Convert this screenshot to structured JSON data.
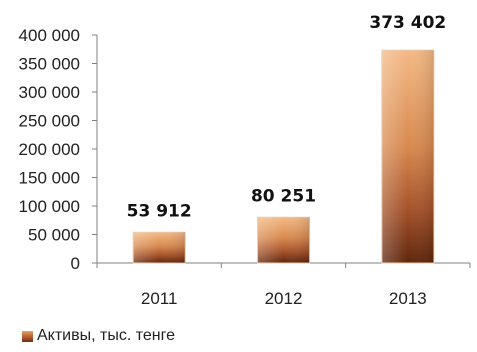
{
  "chart_data": {
    "type": "bar",
    "categories": [
      "2011",
      "2012",
      "2013"
    ],
    "series": [
      {
        "name": "Активы, тыс. тенге",
        "values": [
          53912,
          80251,
          373402
        ]
      }
    ],
    "data_labels": [
      "53 912",
      "80 251",
      "373 402"
    ],
    "y_ticks": [
      "0",
      "50 000",
      "100 000",
      "150 000",
      "200 000",
      "250 000",
      "300 000",
      "350 000",
      "400 000"
    ],
    "ylim": [
      0,
      400000
    ],
    "title": "",
    "xlabel": "",
    "ylabel": "",
    "grid": false,
    "legend_position": "bottom-left",
    "colors": {
      "bar_light": "#f0b07a",
      "bar_mid": "#c06a34",
      "bar_dark": "#6a2c10",
      "axis": "#808080"
    }
  }
}
